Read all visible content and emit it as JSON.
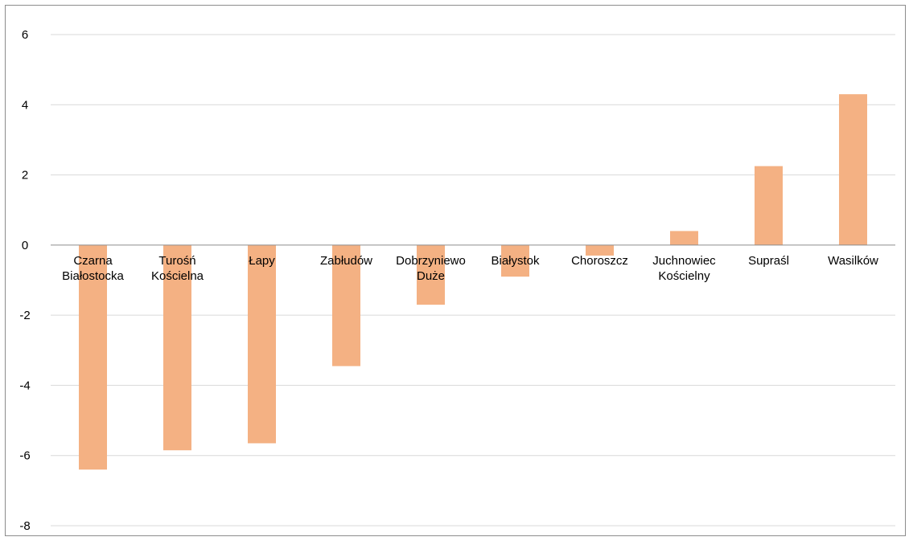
{
  "chart_data": {
    "type": "bar",
    "categories": [
      [
        "Czarna",
        "Białostocka"
      ],
      [
        "Turośń",
        "Kościelna"
      ],
      [
        "Łapy"
      ],
      [
        "Zabłudów"
      ],
      [
        "Dobrzyniewo",
        "Duże"
      ],
      [
        "Białystok"
      ],
      [
        "Choroszcz"
      ],
      [
        "Juchnowiec",
        "Kościelny"
      ],
      [
        "Supraśl"
      ],
      [
        "Wasilków"
      ]
    ],
    "values": [
      -6.4,
      -5.85,
      -5.65,
      -3.45,
      -1.7,
      -0.9,
      -0.3,
      0.4,
      2.25,
      4.3
    ],
    "ylim": [
      -8,
      6
    ],
    "yticks": [
      6,
      4,
      2,
      0,
      -2,
      -4,
      -6,
      -8
    ],
    "title": "",
    "xlabel": "",
    "ylabel": "",
    "grid": true,
    "legend": "none",
    "colors": {
      "bar": "#f4b183",
      "grid": "#d9d9d9",
      "axis": "#8c8c8c"
    }
  }
}
